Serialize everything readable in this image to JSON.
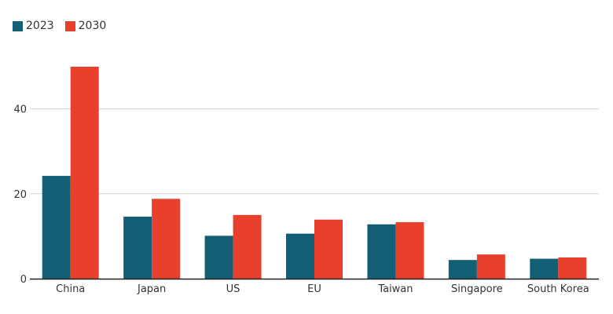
{
  "chart_data": {
    "type": "bar",
    "title": "",
    "xlabel": "",
    "ylabel": "",
    "categories": [
      "China",
      "Japan",
      "US",
      "EU",
      "Taiwan",
      "Singapore",
      "South Korea"
    ],
    "series": [
      {
        "name": "2023",
        "color": "#136076",
        "values": [
          24.2,
          14.6,
          10.1,
          10.6,
          12.8,
          4.4,
          4.7
        ]
      },
      {
        "name": "2030",
        "color": "#e8402c",
        "values": [
          49.9,
          18.8,
          15.0,
          13.9,
          13.3,
          5.7,
          5.0
        ]
      }
    ],
    "ylim": [
      0,
      52
    ],
    "yticks": [
      0,
      20,
      40
    ],
    "grid": true,
    "legend_position": "top-left"
  }
}
